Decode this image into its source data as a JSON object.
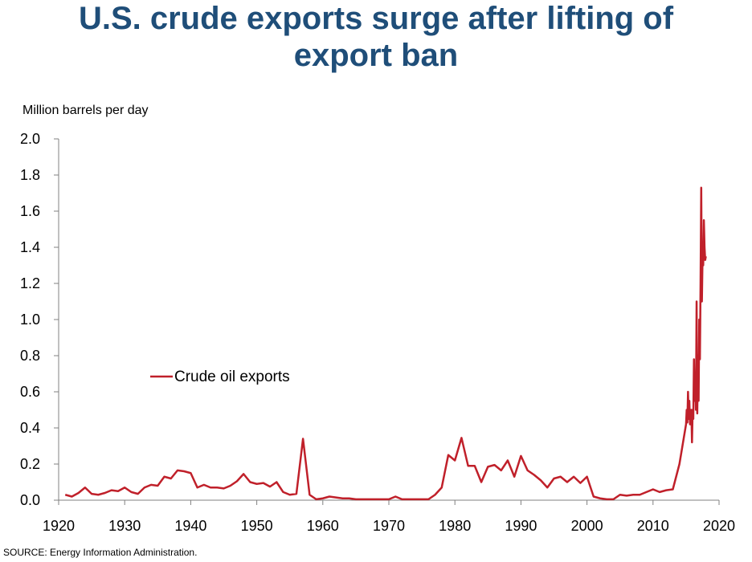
{
  "title_line1": "U.S. crude exports surge after lifting of",
  "title_line2": "export ban",
  "source": "SOURCE: Energy Information Administration.",
  "colors": {
    "title": "#1f4e79",
    "series": "#c0202a",
    "axis": "#808080"
  },
  "chart_data": {
    "type": "line",
    "ylabel": "Million barrels per day",
    "xlabel": "",
    "xlim": [
      1920,
      2020
    ],
    "ylim": [
      0,
      2.0
    ],
    "x_ticks": [
      1920,
      1930,
      1940,
      1950,
      1960,
      1970,
      1980,
      1990,
      2000,
      2010,
      2020
    ],
    "y_ticks": [
      "0.0",
      "0.2",
      "0.4",
      "0.6",
      "0.8",
      "1.0",
      "1.2",
      "1.4",
      "1.6",
      "1.8",
      "2.0"
    ],
    "grid": false,
    "legend": "center-left",
    "series": [
      {
        "name": "Crude oil exports",
        "color": "#c0202a",
        "x": [
          1921,
          1922,
          1923,
          1924,
          1925,
          1926,
          1927,
          1928,
          1929,
          1930,
          1931,
          1932,
          1933,
          1934,
          1935,
          1936,
          1937,
          1938,
          1939,
          1940,
          1941,
          1942,
          1943,
          1944,
          1945,
          1946,
          1947,
          1948,
          1949,
          1950,
          1951,
          1952,
          1953,
          1954,
          1955,
          1956,
          1957,
          1958,
          1959,
          1960,
          1961,
          1962,
          1963,
          1964,
          1965,
          1966,
          1967,
          1968,
          1969,
          1970,
          1971,
          1972,
          1973,
          1974,
          1975,
          1976,
          1977,
          1978,
          1979,
          1980,
          1981,
          1982,
          1983,
          1984,
          1985,
          1986,
          1987,
          1988,
          1989,
          1990,
          1991,
          1992,
          1993,
          1994,
          1995,
          1996,
          1997,
          1998,
          1999,
          2000,
          2001,
          2002,
          2003,
          2004,
          2005,
          2006,
          2007,
          2008,
          2009,
          2010,
          2011,
          2012,
          2013,
          2014,
          2015,
          2015.1,
          2015.2,
          2015.3,
          2015.4,
          2015.5,
          2015.6,
          2015.7,
          2015.8,
          2015.9,
          2016,
          2016.1,
          2016.2,
          2016.3,
          2016.4,
          2016.5,
          2016.6,
          2016.7,
          2016.8,
          2016.9,
          2017,
          2017.1,
          2017.2,
          2017.3,
          2017.4,
          2017.5,
          2017.6,
          2017.7,
          2017.8,
          2017.9,
          2018
        ],
        "values": [
          0.03,
          0.02,
          0.04,
          0.07,
          0.035,
          0.03,
          0.04,
          0.055,
          0.05,
          0.07,
          0.045,
          0.035,
          0.07,
          0.085,
          0.08,
          0.13,
          0.12,
          0.165,
          0.16,
          0.15,
          0.07,
          0.085,
          0.07,
          0.07,
          0.065,
          0.08,
          0.105,
          0.145,
          0.1,
          0.09,
          0.095,
          0.075,
          0.1,
          0.045,
          0.03,
          0.035,
          0.34,
          0.03,
          0.005,
          0.01,
          0.02,
          0.015,
          0.01,
          0.01,
          0.005,
          0.005,
          0.005,
          0.005,
          0.005,
          0.005,
          0.02,
          0.005,
          0.005,
          0.005,
          0.005,
          0.005,
          0.03,
          0.07,
          0.25,
          0.22,
          0.345,
          0.19,
          0.19,
          0.1,
          0.185,
          0.195,
          0.165,
          0.22,
          0.13,
          0.245,
          0.165,
          0.14,
          0.11,
          0.07,
          0.12,
          0.13,
          0.1,
          0.13,
          0.095,
          0.13,
          0.02,
          0.01,
          0.005,
          0.005,
          0.03,
          0.025,
          0.03,
          0.03,
          0.045,
          0.06,
          0.045,
          0.055,
          0.06,
          0.2,
          0.42,
          0.5,
          0.43,
          0.6,
          0.45,
          0.55,
          0.42,
          0.46,
          0.5,
          0.32,
          0.5,
          0.45,
          0.78,
          0.55,
          0.7,
          0.5,
          1.1,
          0.48,
          0.8,
          0.55,
          1.0,
          0.78,
          1.2,
          1.73,
          1.1,
          1.35,
          1.3,
          1.55,
          1.4,
          1.33,
          1.35
        ]
      }
    ]
  }
}
